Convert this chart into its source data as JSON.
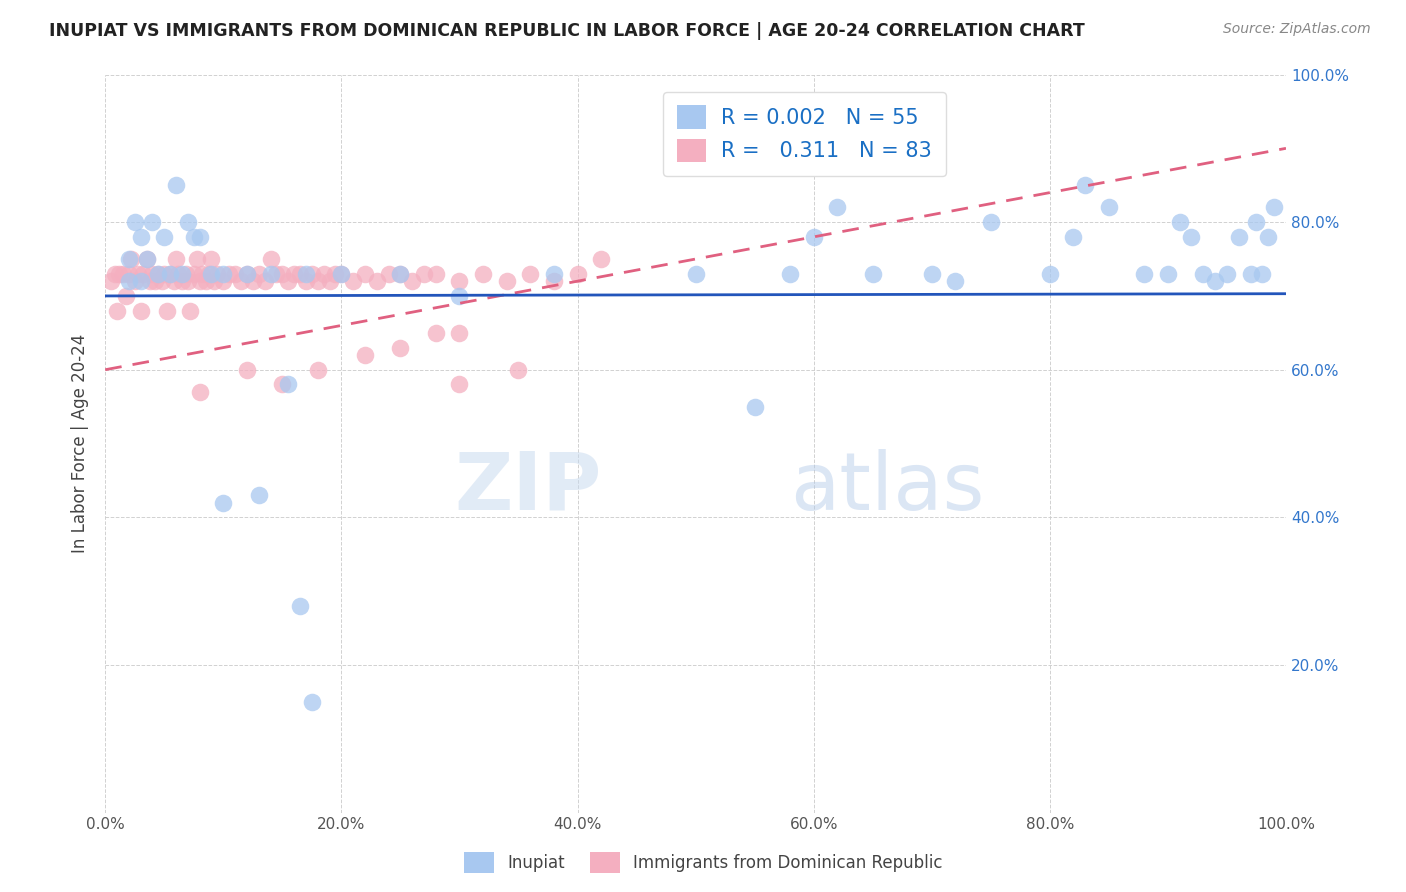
{
  "title": "INUPIAT VS IMMIGRANTS FROM DOMINICAN REPUBLIC IN LABOR FORCE | AGE 20-24 CORRELATION CHART",
  "source": "Source: ZipAtlas.com",
  "ylabel": "In Labor Force | Age 20-24",
  "xlim": [
    0.0,
    1.0
  ],
  "ylim": [
    0.0,
    1.0
  ],
  "xticks": [
    0.0,
    0.2,
    0.4,
    0.6,
    0.8,
    1.0
  ],
  "yticks": [
    0.0,
    0.2,
    0.4,
    0.6,
    0.8,
    1.0
  ],
  "xticklabels": [
    "0.0%",
    "20.0%",
    "40.0%",
    "60.0%",
    "80.0%",
    "100.0%"
  ],
  "yticklabels_right": [
    "",
    "20.0%",
    "40.0%",
    "60.0%",
    "80.0%",
    "100.0%"
  ],
  "r_inupiat": "0.002",
  "n_inupiat": "55",
  "r_dominican": "0.311",
  "n_dominican": "83",
  "color_inupiat": "#a8c8f0",
  "color_dominican": "#f4afc0",
  "line_color_inupiat": "#2255bb",
  "line_color_dominican": "#e06080",
  "legend_blue_label": "Inupiat",
  "legend_pink_label": "Immigrants from Dominican Republic",
  "watermark_zip": "ZIP",
  "watermark_atlas": "atlas",
  "background_color": "#ffffff",
  "grid_color": "#cccccc",
  "inupiat_x": [
    0.02,
    0.02,
    0.025,
    0.03,
    0.03,
    0.035,
    0.04,
    0.045,
    0.05,
    0.055,
    0.06,
    0.065,
    0.07,
    0.075,
    0.08,
    0.09,
    0.1,
    0.12,
    0.14,
    0.17,
    0.2,
    0.25,
    0.3,
    0.38,
    0.5,
    0.55,
    0.58,
    0.6,
    0.62,
    0.65,
    0.7,
    0.72,
    0.75,
    0.8,
    0.82,
    0.83,
    0.85,
    0.88,
    0.9,
    0.91,
    0.92,
    0.93,
    0.94,
    0.95,
    0.96,
    0.97,
    0.975,
    0.98,
    0.985,
    0.99,
    0.1,
    0.13,
    0.155,
    0.165,
    0.175
  ],
  "inupiat_y": [
    0.72,
    0.75,
    0.8,
    0.72,
    0.78,
    0.75,
    0.8,
    0.73,
    0.78,
    0.73,
    0.85,
    0.73,
    0.8,
    0.78,
    0.78,
    0.73,
    0.73,
    0.73,
    0.73,
    0.73,
    0.73,
    0.73,
    0.7,
    0.73,
    0.73,
    0.55,
    0.73,
    0.78,
    0.82,
    0.73,
    0.73,
    0.72,
    0.8,
    0.73,
    0.78,
    0.85,
    0.82,
    0.73,
    0.73,
    0.8,
    0.78,
    0.73,
    0.72,
    0.73,
    0.78,
    0.73,
    0.8,
    0.73,
    0.78,
    0.82,
    0.42,
    0.43,
    0.58,
    0.28,
    0.15
  ],
  "dominican_x": [
    0.005,
    0.008,
    0.01,
    0.012,
    0.015,
    0.018,
    0.02,
    0.022,
    0.025,
    0.028,
    0.03,
    0.032,
    0.035,
    0.038,
    0.04,
    0.042,
    0.045,
    0.048,
    0.05,
    0.052,
    0.055,
    0.058,
    0.06,
    0.062,
    0.065,
    0.068,
    0.07,
    0.072,
    0.075,
    0.078,
    0.08,
    0.082,
    0.085,
    0.088,
    0.09,
    0.092,
    0.095,
    0.1,
    0.105,
    0.11,
    0.115,
    0.12,
    0.125,
    0.13,
    0.135,
    0.14,
    0.145,
    0.15,
    0.155,
    0.16,
    0.165,
    0.17,
    0.175,
    0.18,
    0.185,
    0.19,
    0.195,
    0.2,
    0.21,
    0.22,
    0.23,
    0.24,
    0.25,
    0.26,
    0.27,
    0.28,
    0.3,
    0.32,
    0.34,
    0.36,
    0.38,
    0.4,
    0.42,
    0.28,
    0.3,
    0.25,
    0.35,
    0.3,
    0.22,
    0.18,
    0.15,
    0.12,
    0.08
  ],
  "dominican_y": [
    0.72,
    0.73,
    0.68,
    0.73,
    0.73,
    0.7,
    0.73,
    0.75,
    0.72,
    0.73,
    0.68,
    0.73,
    0.75,
    0.72,
    0.73,
    0.72,
    0.73,
    0.72,
    0.73,
    0.68,
    0.73,
    0.72,
    0.75,
    0.73,
    0.72,
    0.73,
    0.72,
    0.68,
    0.73,
    0.75,
    0.72,
    0.73,
    0.72,
    0.73,
    0.75,
    0.72,
    0.73,
    0.72,
    0.73,
    0.73,
    0.72,
    0.73,
    0.72,
    0.73,
    0.72,
    0.75,
    0.73,
    0.73,
    0.72,
    0.73,
    0.73,
    0.72,
    0.73,
    0.72,
    0.73,
    0.72,
    0.73,
    0.73,
    0.72,
    0.73,
    0.72,
    0.73,
    0.73,
    0.72,
    0.73,
    0.73,
    0.72,
    0.73,
    0.72,
    0.73,
    0.72,
    0.73,
    0.75,
    0.65,
    0.65,
    0.63,
    0.6,
    0.58,
    0.62,
    0.6,
    0.58,
    0.6,
    0.57
  ]
}
